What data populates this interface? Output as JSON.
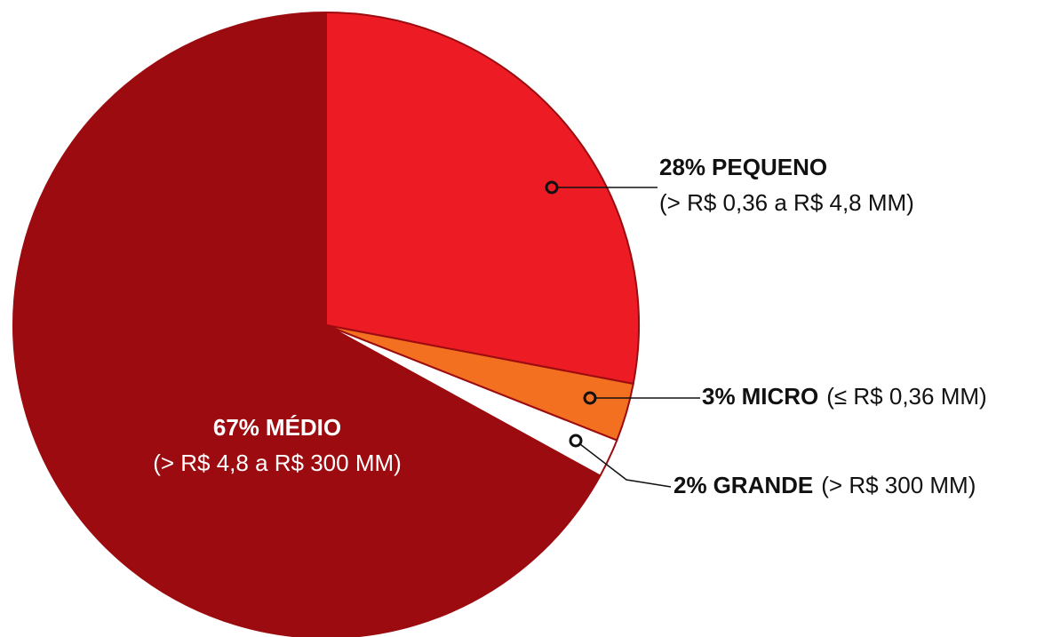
{
  "chart_data": {
    "type": "pie",
    "categories": [
      "PEQUENO",
      "MICRO",
      "GRANDE",
      "MÉDIO"
    ],
    "values": [
      28,
      3,
      2,
      67
    ],
    "value_labels": [
      "28%",
      "3%",
      "2%",
      "67%"
    ],
    "ranges": [
      "(> R$ 0,36 a R$ 4,8 MM)",
      "(≤ R$ 0,36 MM)",
      "(> R$ 300 MM)",
      "(> R$ 4,8 a R$ 300 MM)"
    ],
    "colors": [
      "#ED1C24",
      "#F37021",
      "#FFFFFF",
      "#9B0B0F"
    ]
  }
}
